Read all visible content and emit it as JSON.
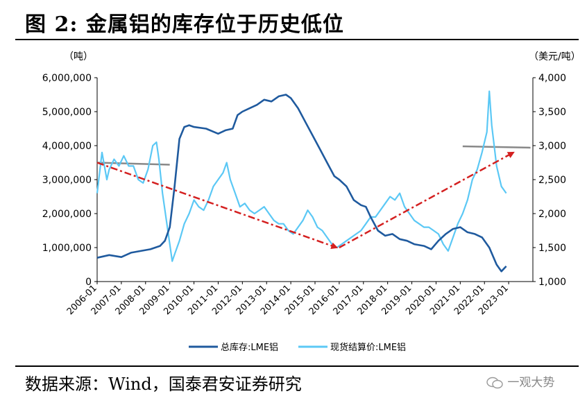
{
  "header": {
    "title": "图 2:  金属铝的库存位于历史低位"
  },
  "footer": {
    "source": "数据来源：Wind，国泰君安证券研究",
    "watermark": "一观大势"
  },
  "chart_data": {
    "type": "line",
    "title": "",
    "y_left_unit": "（吨）",
    "y_right_unit": "（美元/吨）",
    "y_left_ticks": [
      "0",
      "1,000,000",
      "2,000,000",
      "3,000,000",
      "4,000,000",
      "5,000,000",
      "6,000,000"
    ],
    "y_right_ticks": [
      "1,000",
      "1,500",
      "2,000",
      "2,500",
      "3,000",
      "3,500",
      "4,000"
    ],
    "ylim_left": [
      0,
      6000000
    ],
    "ylim_right": [
      1000,
      4000
    ],
    "x_ticks": [
      "2006-01",
      "2007-01",
      "2008-01",
      "2009-01",
      "2010-01",
      "2011-01",
      "2012-01",
      "2013-01",
      "2014-01",
      "2015-01",
      "2016-01",
      "2017-01",
      "2018-01",
      "2019-01",
      "2020-01",
      "2021-01",
      "2022-01",
      "2023-01"
    ],
    "legend": {
      "placement": "bottom",
      "entries": [
        "总库存:LME铝",
        "现货结算价:LME铝"
      ]
    },
    "colors": {
      "inventory": "#1f5a9e",
      "price": "#5bc8f5",
      "trend": "#d42020",
      "ref_line": "#888888"
    },
    "series": [
      {
        "name": "总库存:LME铝",
        "axis": "left",
        "x": [
          2006.0,
          2006.5,
          2007.0,
          2007.4,
          2007.8,
          2008.2,
          2008.6,
          2008.8,
          2009.0,
          2009.2,
          2009.4,
          2009.6,
          2009.8,
          2010.0,
          2010.5,
          2011.0,
          2011.3,
          2011.6,
          2011.8,
          2012.0,
          2012.3,
          2012.6,
          2012.9,
          2013.2,
          2013.5,
          2013.8,
          2014.0,
          2014.3,
          2014.6,
          2014.9,
          2015.2,
          2015.5,
          2015.8,
          2016.0,
          2016.3,
          2016.6,
          2016.9,
          2017.1,
          2017.3,
          2017.6,
          2017.9,
          2018.2,
          2018.5,
          2018.8,
          2019.1,
          2019.5,
          2019.8,
          2020.1,
          2020.4,
          2020.7,
          2021.0,
          2021.3,
          2021.6,
          2021.9,
          2022.2,
          2022.5,
          2022.7,
          2022.9
        ],
        "values": [
          700000,
          780000,
          720000,
          850000,
          900000,
          950000,
          1050000,
          1200000,
          1600000,
          2800000,
          4200000,
          4550000,
          4600000,
          4550000,
          4500000,
          4350000,
          4450000,
          4500000,
          4900000,
          5000000,
          5100000,
          5200000,
          5350000,
          5300000,
          5450000,
          5500000,
          5400000,
          5100000,
          4700000,
          4300000,
          3900000,
          3500000,
          3100000,
          3000000,
          2800000,
          2400000,
          2250000,
          2200000,
          1900000,
          1500000,
          1350000,
          1400000,
          1250000,
          1200000,
          1100000,
          1050000,
          950000,
          1200000,
          1400000,
          1550000,
          1600000,
          1450000,
          1400000,
          1300000,
          1000000,
          500000,
          300000,
          450000
        ]
      },
      {
        "name": "现货结算价:LME铝",
        "axis": "right",
        "x": [
          2006.0,
          2006.1,
          2006.2,
          2006.3,
          2006.4,
          2006.5,
          2006.7,
          2006.9,
          2007.1,
          2007.3,
          2007.5,
          2007.7,
          2007.9,
          2008.1,
          2008.3,
          2008.45,
          2008.55,
          2008.7,
          2008.9,
          2009.1,
          2009.2,
          2009.4,
          2009.6,
          2009.8,
          2010.0,
          2010.2,
          2010.4,
          2010.6,
          2010.8,
          2011.0,
          2011.2,
          2011.35,
          2011.5,
          2011.7,
          2011.9,
          2012.1,
          2012.3,
          2012.5,
          2012.7,
          2012.9,
          2013.1,
          2013.3,
          2013.5,
          2013.7,
          2013.9,
          2014.1,
          2014.3,
          2014.5,
          2014.7,
          2014.9,
          2015.1,
          2015.3,
          2015.5,
          2015.7,
          2015.9,
          2016.1,
          2016.3,
          2016.5,
          2016.7,
          2016.9,
          2017.1,
          2017.3,
          2017.5,
          2017.7,
          2017.9,
          2018.1,
          2018.3,
          2018.5,
          2018.7,
          2018.9,
          2019.1,
          2019.3,
          2019.5,
          2019.7,
          2019.9,
          2020.1,
          2020.3,
          2020.5,
          2020.7,
          2020.9,
          2021.1,
          2021.3,
          2021.5,
          2021.7,
          2021.9,
          2022.1,
          2022.2,
          2022.3,
          2022.5,
          2022.7,
          2022.9
        ],
        "values": [
          2300,
          2600,
          2900,
          2700,
          2500,
          2650,
          2800,
          2700,
          2850,
          2700,
          2700,
          2500,
          2450,
          2650,
          3000,
          3050,
          2800,
          2300,
          1800,
          1300,
          1400,
          1600,
          1850,
          2000,
          2200,
          2100,
          2050,
          2200,
          2400,
          2500,
          2600,
          2750,
          2500,
          2300,
          2100,
          2150,
          2050,
          2000,
          2050,
          2100,
          2000,
          1900,
          1850,
          1850,
          1750,
          1700,
          1800,
          1900,
          2050,
          1950,
          1800,
          1750,
          1650,
          1550,
          1500,
          1550,
          1600,
          1650,
          1700,
          1750,
          1850,
          1950,
          1950,
          2050,
          2150,
          2250,
          2200,
          2300,
          2100,
          2000,
          1900,
          1850,
          1800,
          1800,
          1750,
          1700,
          1550,
          1450,
          1650,
          1850,
          2000,
          2200,
          2500,
          2650,
          2900,
          3200,
          3800,
          3300,
          2700,
          2400,
          2300
        ]
      }
    ],
    "annotations": [
      {
        "type": "trend_arrow",
        "from": [
          2006.0,
          2.75
        ],
        "to": [
          2015.9,
          1.5
        ],
        "unit": "right-axis thousand"
      },
      {
        "type": "trend_arrow",
        "from": [
          2016.0,
          1.5
        ],
        "to": [
          2023.2,
          2.9
        ],
        "unit": "right-axis thousand"
      },
      {
        "type": "reference_line",
        "from": [
          2006.0,
          2750
        ],
        "to": [
          2009.0,
          2720
        ]
      },
      {
        "type": "reference_line",
        "from": [
          2021.1,
          2990
        ],
        "to": [
          2023.9,
          2970
        ]
      }
    ]
  }
}
